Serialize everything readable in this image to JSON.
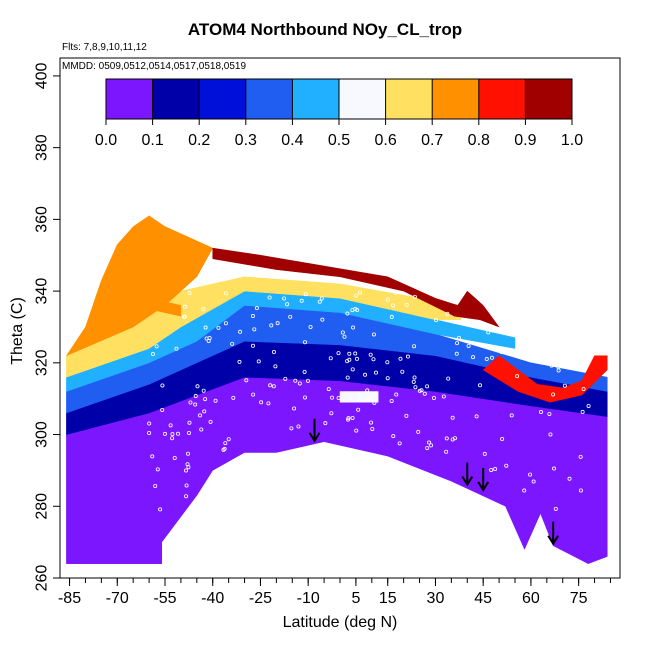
{
  "chart_data": {
    "type": "heatmap",
    "title": "ATOM4 Northbound NOy_CL_trop",
    "flights_label": "Flts: 7,8,9,10,11,12",
    "dates_label": "MMDD: 0509,0512,0514,0517,0518,0519",
    "xlabel": "Latitude (deg N)",
    "ylabel": "Theta (C)",
    "xlim": [
      -88,
      88
    ],
    "ylim": [
      260,
      405
    ],
    "x_ticks": [
      "-85",
      "-70",
      "-55",
      "-40",
      "-25",
      "-10",
      "5",
      "15",
      "30",
      "45",
      "60",
      "75"
    ],
    "y_ticks": [
      "260",
      "280",
      "300",
      "320",
      "340",
      "360",
      "380",
      "400"
    ],
    "colorbar": {
      "ticks": [
        "0.0",
        "0.1",
        "0.2",
        "0.3",
        "0.4",
        "0.5",
        "0.6",
        "0.7",
        "0.8",
        "0.9",
        "1.0"
      ],
      "range": [
        0,
        1
      ],
      "colors": [
        "#7b16ff",
        "#0000a8",
        "#0010d8",
        "#1f5ef0",
        "#20b0ff",
        "#f8f8ff",
        "#ffe060",
        "#ff9000",
        "#ff1000",
        "#a00000"
      ]
    },
    "upper_boundary": [
      [
        -86,
        322
      ],
      [
        -80,
        330
      ],
      [
        -75,
        343
      ],
      [
        -70,
        353
      ],
      [
        -65,
        358
      ],
      [
        -60,
        361
      ],
      [
        -55,
        358
      ],
      [
        -45,
        354
      ],
      [
        -35,
        351
      ],
      [
        -25,
        350
      ],
      [
        -15,
        348
      ],
      [
        -5,
        347
      ],
      [
        5,
        345
      ],
      [
        15,
        344
      ],
      [
        20,
        342
      ],
      [
        25,
        340
      ],
      [
        30,
        338
      ],
      [
        37,
        336
      ],
      [
        40,
        340
      ],
      [
        45,
        336
      ],
      [
        50,
        330
      ],
      [
        55,
        325
      ],
      [
        60,
        318
      ],
      [
        65,
        314
      ],
      [
        70,
        313
      ],
      [
        75,
        315
      ],
      [
        80,
        322
      ],
      [
        84,
        322
      ]
    ],
    "lower_boundary": [
      [
        -86,
        264
      ],
      [
        -56,
        264
      ],
      [
        -56,
        270
      ],
      [
        -50,
        275
      ],
      [
        -45,
        283
      ],
      [
        -40,
        290
      ],
      [
        -30,
        295
      ],
      [
        -20,
        295
      ],
      [
        -15,
        297
      ],
      [
        -5,
        298
      ],
      [
        5,
        297
      ],
      [
        15,
        294
      ],
      [
        25,
        290
      ],
      [
        35,
        287
      ],
      [
        45,
        284
      ],
      [
        52,
        280
      ],
      [
        56,
        274
      ],
      [
        58,
        268
      ],
      [
        61,
        282
      ],
      [
        63,
        278
      ],
      [
        65,
        283
      ],
      [
        67,
        269
      ],
      [
        70,
        266
      ],
      [
        74,
        270
      ],
      [
        78,
        264
      ],
      [
        84,
        266
      ],
      [
        84,
        322
      ]
    ],
    "field_regions": [
      {
        "value": 0.08,
        "polygon": [
          [
            -86,
            264
          ],
          [
            -56,
            264
          ],
          [
            -56,
            270
          ],
          [
            -45,
            283
          ],
          [
            -40,
            290
          ],
          [
            -30,
            295
          ],
          [
            -20,
            295
          ],
          [
            -5,
            298
          ],
          [
            15,
            294
          ],
          [
            35,
            287
          ],
          [
            52,
            280
          ],
          [
            58,
            268
          ],
          [
            63,
            278
          ],
          [
            67,
            269
          ],
          [
            78,
            264
          ],
          [
            84,
            266
          ],
          [
            84,
            305
          ],
          [
            60,
            308
          ],
          [
            30,
            312
          ],
          [
            0,
            315
          ],
          [
            -30,
            316
          ],
          [
            -60,
            306
          ],
          [
            -86,
            300
          ]
        ]
      },
      {
        "value": 0.18,
        "polygon": [
          [
            -86,
            300
          ],
          [
            -60,
            306
          ],
          [
            -30,
            316
          ],
          [
            0,
            315
          ],
          [
            30,
            312
          ],
          [
            60,
            308
          ],
          [
            84,
            305
          ],
          [
            84,
            312
          ],
          [
            60,
            316
          ],
          [
            30,
            322
          ],
          [
            0,
            325
          ],
          [
            -30,
            326
          ],
          [
            -60,
            314
          ],
          [
            -86,
            306
          ]
        ]
      },
      {
        "value": 0.3,
        "polygon": [
          [
            -86,
            306
          ],
          [
            -60,
            314
          ],
          [
            -30,
            326
          ],
          [
            0,
            325
          ],
          [
            30,
            322
          ],
          [
            60,
            316
          ],
          [
            84,
            312
          ],
          [
            84,
            316
          ],
          [
            60,
            320
          ],
          [
            30,
            328
          ],
          [
            0,
            334
          ],
          [
            -30,
            336
          ],
          [
            -60,
            320
          ],
          [
            -86,
            312
          ]
        ]
      },
      {
        "value": 0.45,
        "polygon": [
          [
            -86,
            312
          ],
          [
            -60,
            320
          ],
          [
            -45,
            326
          ],
          [
            -30,
            336
          ],
          [
            0,
            334
          ],
          [
            30,
            328
          ],
          [
            55,
            324
          ],
          [
            55,
            327
          ],
          [
            30,
            332
          ],
          [
            0,
            338
          ],
          [
            -30,
            340
          ],
          [
            -50,
            330
          ],
          [
            -60,
            324
          ],
          [
            -86,
            316
          ]
        ]
      },
      {
        "value": 0.62,
        "polygon": [
          [
            -86,
            316
          ],
          [
            -60,
            324
          ],
          [
            -50,
            330
          ],
          [
            -30,
            340
          ],
          [
            0,
            338
          ],
          [
            30,
            332
          ],
          [
            38,
            332
          ],
          [
            38,
            336
          ],
          [
            0,
            342
          ],
          [
            -30,
            344
          ],
          [
            -50,
            340
          ],
          [
            -65,
            334
          ],
          [
            -86,
            322
          ]
        ]
      },
      {
        "value": 0.72,
        "polygon": [
          [
            -86,
            322
          ],
          [
            -80,
            330
          ],
          [
            -75,
            343
          ],
          [
            -70,
            353
          ],
          [
            -65,
            358
          ],
          [
            -60,
            361
          ],
          [
            -55,
            358
          ],
          [
            -45,
            354
          ],
          [
            -40,
            352
          ],
          [
            -45,
            344
          ],
          [
            -55,
            336
          ],
          [
            -65,
            330
          ]
        ]
      },
      {
        "value": 0.92,
        "polygon": [
          [
            -40,
            352
          ],
          [
            -25,
            350
          ],
          [
            -5,
            347
          ],
          [
            15,
            344
          ],
          [
            30,
            338
          ],
          [
            37,
            336
          ],
          [
            40,
            340
          ],
          [
            45,
            336
          ],
          [
            50,
            330
          ],
          [
            44,
            332
          ],
          [
            36,
            333
          ],
          [
            20,
            340
          ],
          [
            0,
            344
          ],
          [
            -20,
            346
          ],
          [
            -40,
            349
          ]
        ]
      },
      {
        "value": 0.85,
        "polygon": [
          [
            45,
            318
          ],
          [
            50,
            322
          ],
          [
            56,
            318
          ],
          [
            62,
            314
          ],
          [
            70,
            313
          ],
          [
            76,
            315
          ],
          [
            80,
            322
          ],
          [
            84,
            322
          ],
          [
            84,
            318
          ],
          [
            76,
            311
          ],
          [
            66,
            309
          ],
          [
            56,
            312
          ]
        ]
      },
      {
        "value": 0.55,
        "polygon": [
          [
            0,
            309
          ],
          [
            12,
            309
          ],
          [
            12,
            312
          ],
          [
            0,
            312
          ]
        ]
      },
      {
        "value": 0.78,
        "polygon": [
          [
            -70,
            337
          ],
          [
            -50,
            333
          ],
          [
            -50,
            336
          ],
          [
            -70,
            340
          ]
        ]
      }
    ],
    "arrows_x": [
      -8,
      40,
      45,
      67
    ]
  }
}
